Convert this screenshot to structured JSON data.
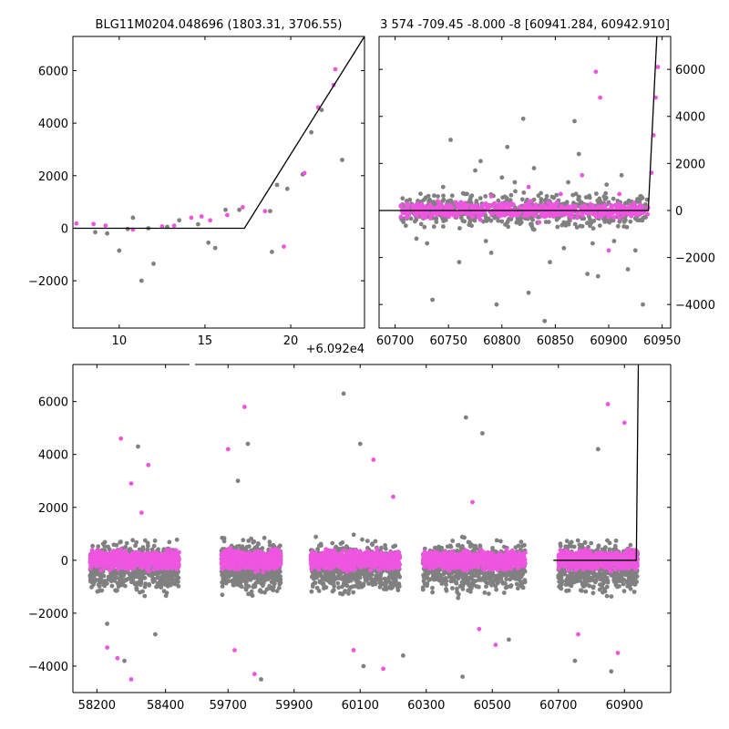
{
  "colors": {
    "gray": "#808080",
    "magenta": "#ee55e0",
    "model": "#000000",
    "axis": "#000000"
  },
  "chart_data": [
    {
      "type": "scatter",
      "title": "BLG11M0204.048696 (1803.31, 3706.55)",
      "xlim": [
        7.3,
        24.3
      ],
      "ylim": [
        -3800,
        7300
      ],
      "xticks": [
        10,
        15,
        20
      ],
      "yticks": [
        -2000,
        0,
        2000,
        4000,
        6000
      ],
      "ytick_labels": [
        "−2000",
        "0",
        "2000",
        "4000",
        "6000"
      ],
      "x_offset_label": "+6.092e4",
      "model": {
        "x": [
          7.3,
          17.3,
          24.3
        ],
        "y": [
          0,
          0,
          7300
        ]
      },
      "series": [
        {
          "color": "gray",
          "points": [
            [
              8.6,
              -150
            ],
            [
              9.3,
              -200
            ],
            [
              10.0,
              -850
            ],
            [
              10.5,
              -30
            ],
            [
              10.8,
              400
            ],
            [
              11.3,
              -2000
            ],
            [
              11.7,
              0
            ],
            [
              12.0,
              -1350
            ],
            [
              12.8,
              50
            ],
            [
              13.5,
              300
            ],
            [
              14.6,
              150
            ],
            [
              15.2,
              -550
            ],
            [
              15.6,
              -750
            ],
            [
              16.2,
              700
            ],
            [
              17.0,
              700
            ],
            [
              18.8,
              650
            ],
            [
              18.9,
              -900
            ],
            [
              19.2,
              1650
            ],
            [
              19.8,
              1500
            ],
            [
              20.7,
              2050
            ],
            [
              21.2,
              3650
            ],
            [
              21.8,
              4500
            ],
            [
              23.0,
              2600
            ]
          ]
        },
        {
          "color": "magenta",
          "points": [
            [
              7.5,
              180
            ],
            [
              8.5,
              160
            ],
            [
              9.2,
              100
            ],
            [
              10.8,
              -50
            ],
            [
              12.5,
              70
            ],
            [
              13.2,
              100
            ],
            [
              14.2,
              400
            ],
            [
              14.8,
              450
            ],
            [
              15.3,
              300
            ],
            [
              16.3,
              500
            ],
            [
              17.2,
              800
            ],
            [
              18.5,
              650
            ],
            [
              19.6,
              -700
            ],
            [
              20.8,
              2100
            ],
            [
              21.6,
              4600
            ],
            [
              22.5,
              5450
            ],
            [
              22.6,
              6050
            ]
          ]
        }
      ]
    },
    {
      "type": "scatter",
      "title": "3 574 -709.45 -8.000 -8 [60941.284, 60942.910]",
      "xlim": [
        60685,
        60958
      ],
      "ylim": [
        -5000,
        7400
      ],
      "xticks": [
        60700,
        60750,
        60800,
        60850,
        60900,
        60950
      ],
      "yticks": [
        -4000,
        -2000,
        0,
        2000,
        4000,
        6000
      ],
      "ytick_labels": [
        "−4000",
        "−2000",
        "0",
        "2000",
        "4000",
        "6000"
      ],
      "model": {
        "x": [
          60685,
          60937,
          60945
        ],
        "y": [
          0,
          0,
          7400
        ]
      },
      "series": [
        {
          "color": "gray",
          "points": [
            [
              60720,
              -1200
            ],
            [
              60730,
              -1400
            ],
            [
              60735,
              -3800
            ],
            [
              60740,
              600
            ],
            [
              60745,
              1000
            ],
            [
              60752,
              3000
            ],
            [
              60760,
              -2200
            ],
            [
              60770,
              -500
            ],
            [
              60775,
              1700
            ],
            [
              60780,
              2100
            ],
            [
              60785,
              -1300
            ],
            [
              60790,
              -1800
            ],
            [
              60795,
              -4000
            ],
            [
              60800,
              1400
            ],
            [
              60805,
              2700
            ],
            [
              60812,
              1200
            ],
            [
              60820,
              3900
            ],
            [
              60825,
              -3500
            ],
            [
              60830,
              1800
            ],
            [
              60840,
              -4700
            ],
            [
              60845,
              -2200
            ],
            [
              60852,
              -700
            ],
            [
              60858,
              -1600
            ],
            [
              60862,
              1200
            ],
            [
              60868,
              3800
            ],
            [
              60872,
              2400
            ],
            [
              60880,
              -2700
            ],
            [
              60885,
              -1400
            ],
            [
              60890,
              -2800
            ],
            [
              60898,
              1100
            ],
            [
              60905,
              -1300
            ],
            [
              60912,
              1500
            ],
            [
              60918,
              -2500
            ],
            [
              60925,
              -1700
            ],
            [
              60932,
              -4000
            ]
          ]
        },
        {
          "color": "magenta",
          "points": [
            [
              60712,
              100
            ],
            [
              60725,
              -150
            ],
            [
              60740,
              400
            ],
            [
              60750,
              -100
            ],
            [
              60765,
              250
            ],
            [
              60780,
              -400
            ],
            [
              60790,
              600
            ],
            [
              60800,
              300
            ],
            [
              60815,
              -200
            ],
            [
              60825,
              1000
            ],
            [
              60835,
              -500
            ],
            [
              60845,
              200
            ],
            [
              60855,
              700
            ],
            [
              60865,
              -300
            ],
            [
              60875,
              1500
            ],
            [
              60885,
              200
            ],
            [
              60888,
              5900
            ],
            [
              60892,
              4800
            ],
            [
              60900,
              -1700
            ],
            [
              60910,
              700
            ],
            [
              60940,
              1600
            ],
            [
              60942,
              3200
            ],
            [
              60944,
              4800
            ],
            [
              60946,
              6100
            ]
          ]
        }
      ]
    },
    {
      "type": "scatter",
      "broken_x": true,
      "ylim": [
        -5000,
        7400
      ],
      "yticks": [
        -4000,
        -2000,
        0,
        2000,
        4000,
        6000
      ],
      "ytick_labels": [
        "−4000",
        "−2000",
        "0",
        "2000",
        "4000",
        "6000"
      ],
      "xticks": [
        58200,
        58400,
        59700,
        59900,
        60100,
        60300,
        60500,
        60700,
        60900
      ],
      "model": {
        "x": [
          60685,
          60936,
          60942
        ],
        "y": [
          0,
          0,
          7400
        ]
      },
      "seasons": [
        {
          "range": [
            58180,
            58440
          ],
          "seg": 0
        },
        {
          "range": [
            59680,
            59860
          ],
          "seg": 1
        },
        {
          "range": [
            59950,
            60220
          ],
          "seg": 1
        },
        {
          "range": [
            60290,
            60600
          ],
          "seg": 1
        },
        {
          "range": [
            60700,
            60940
          ],
          "seg": 1
        }
      ],
      "outliers": [
        {
          "color": "magenta",
          "points": [
            [
              58270,
              4600
            ],
            [
              58300,
              2900
            ],
            [
              58330,
              1800
            ],
            [
              58350,
              3600
            ],
            [
              58230,
              -3300
            ],
            [
              58260,
              -3700
            ],
            [
              58300,
              -4500
            ],
            [
              59700,
              4200
            ],
            [
              59750,
              5800
            ],
            [
              59780,
              -4300
            ],
            [
              59720,
              -3400
            ],
            [
              60140,
              3800
            ],
            [
              60200,
              2400
            ],
            [
              60080,
              -3400
            ],
            [
              60170,
              -4100
            ],
            [
              60440,
              2200
            ],
            [
              60460,
              -2600
            ],
            [
              60510,
              -3200
            ],
            [
              60850,
              5900
            ],
            [
              60900,
              5200
            ],
            [
              60880,
              -3500
            ],
            [
              60760,
              -2800
            ]
          ]
        },
        {
          "color": "gray",
          "points": [
            [
              58320,
              4300
            ],
            [
              58230,
              -2400
            ],
            [
              58280,
              -3800
            ],
            [
              58370,
              -2800
            ],
            [
              59760,
              4400
            ],
            [
              59800,
              -4500
            ],
            [
              59730,
              3000
            ],
            [
              60050,
              6300
            ],
            [
              60100,
              4400
            ],
            [
              60110,
              -4000
            ],
            [
              60230,
              -3600
            ],
            [
              60420,
              5400
            ],
            [
              60470,
              4800
            ],
            [
              60410,
              -4400
            ],
            [
              60550,
              -3000
            ],
            [
              60820,
              4200
            ],
            [
              60860,
              -4200
            ],
            [
              60750,
              -3800
            ]
          ]
        }
      ]
    }
  ]
}
